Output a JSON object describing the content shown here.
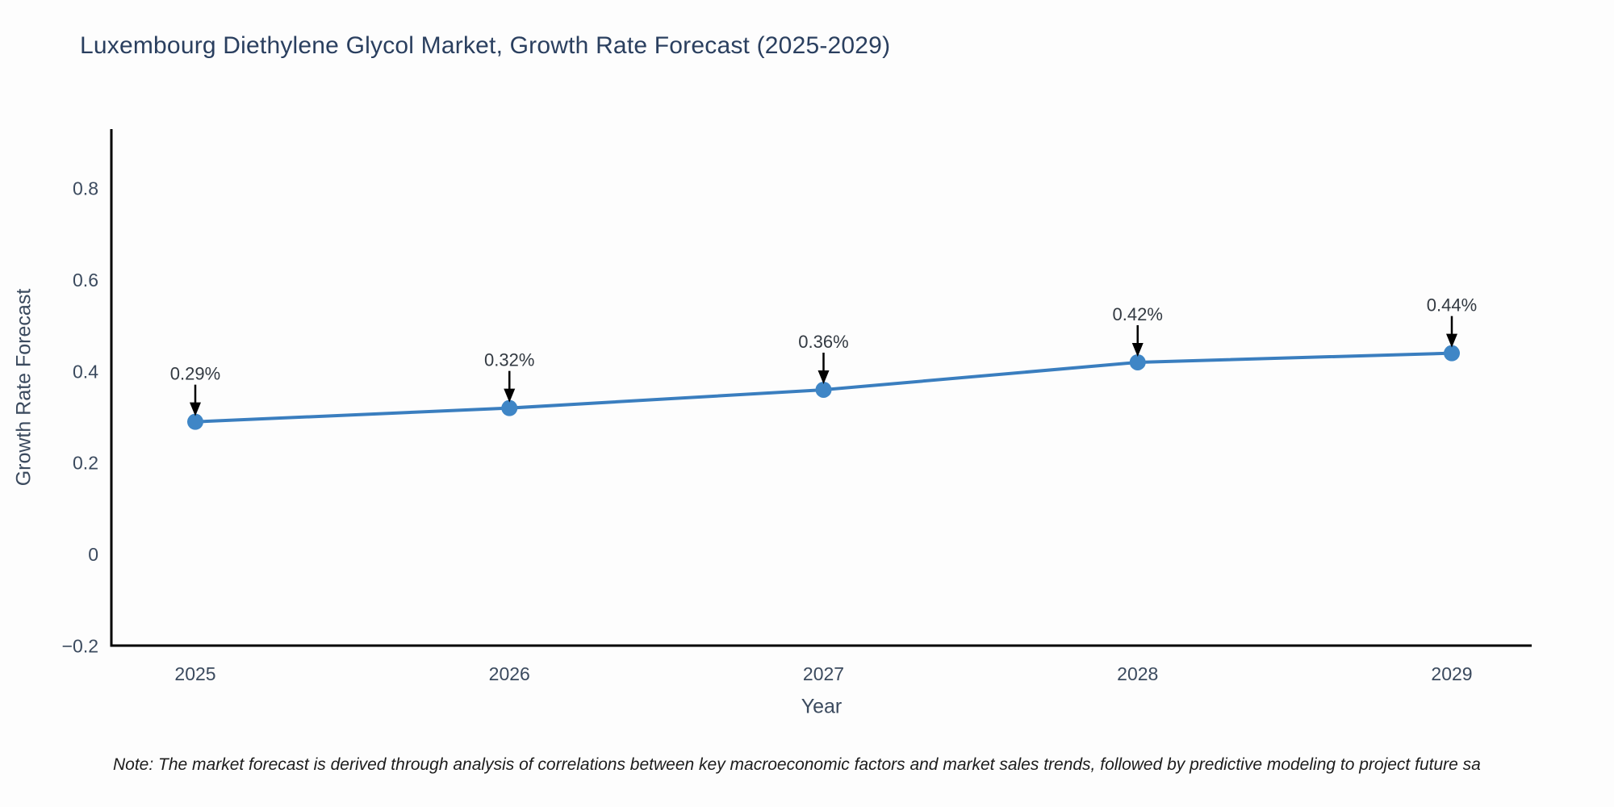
{
  "chart_data": {
    "type": "line",
    "title": "Luxembourg Diethylene Glycol Market, Growth Rate Forecast (2025-2029)",
    "xlabel": "Year",
    "ylabel": "Growth Rate Forecast",
    "categories": [
      "2025",
      "2026",
      "2027",
      "2028",
      "2029"
    ],
    "series": [
      {
        "name": "Growth Rate Forecast",
        "values": [
          0.29,
          0.32,
          0.36,
          0.42,
          0.44
        ]
      }
    ],
    "point_labels": [
      "0.29%",
      "0.32%",
      "0.36%",
      "0.42%",
      "0.44%"
    ],
    "yticks": [
      0.8,
      0.6,
      0.4,
      0.2,
      0,
      -0.2
    ],
    "ytick_labels": [
      "0.8",
      "0.6",
      "0.4",
      "0.2",
      "0",
      "−0.2"
    ],
    "ylim": [
      -0.2,
      0.93
    ],
    "grid": false,
    "legend_position": "none",
    "line_color": "#3a7ebf",
    "marker_color": "#3f86c6",
    "arrow_color": "#000000"
  },
  "colors": {
    "title_text": "#2a3f5f",
    "axis_tick_text": "#3b4a5e",
    "annotation_text": "#333a42",
    "spine": "#000000"
  },
  "note": {
    "text": "Note: The market forecast is derived through analysis of correlations between key macroeconomic factors and market sales trends, followed by predictive modeling to project future sa"
  }
}
